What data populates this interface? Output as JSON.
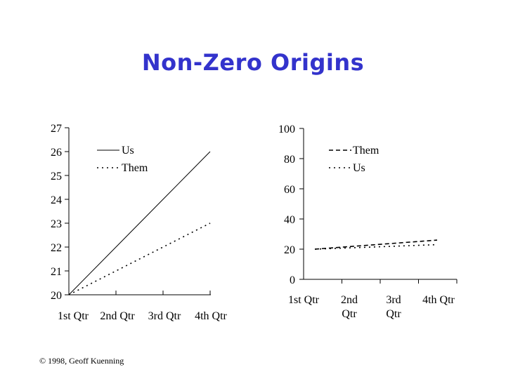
{
  "slide": {
    "title": "Non-Zero Origins",
    "footer": "© 1998, Geoff Kuenning"
  },
  "chart_data": [
    {
      "type": "line",
      "categories": [
        "1st Qtr",
        "2nd Qtr",
        "3rd Qtr",
        "4th Qtr"
      ],
      "ylim": [
        20,
        27
      ],
      "yticks": [
        "20",
        "21",
        "22",
        "23",
        "24",
        "25",
        "26",
        "27"
      ],
      "series": [
        {
          "name": "Us",
          "values": [
            20,
            22,
            24,
            26
          ],
          "style": "solid"
        },
        {
          "name": "Them",
          "values": [
            20,
            21,
            22,
            23
          ],
          "style": "dotted"
        }
      ],
      "legend": "top-left",
      "grid": false
    },
    {
      "type": "line",
      "categories": [
        "1st Qtr",
        "2nd Qtr",
        "3rd Qtr",
        "4th Qtr"
      ],
      "ylim": [
        0,
        100
      ],
      "yticks": [
        "0",
        "20",
        "40",
        "60",
        "80",
        "100"
      ],
      "series": [
        {
          "name": "Them",
          "values": [
            20,
            22,
            24,
            26
          ],
          "style": "dashed"
        },
        {
          "name": "Us",
          "values": [
            20,
            21,
            22,
            23
          ],
          "style": "dotted"
        }
      ],
      "legend": "top-left",
      "grid": false
    }
  ]
}
